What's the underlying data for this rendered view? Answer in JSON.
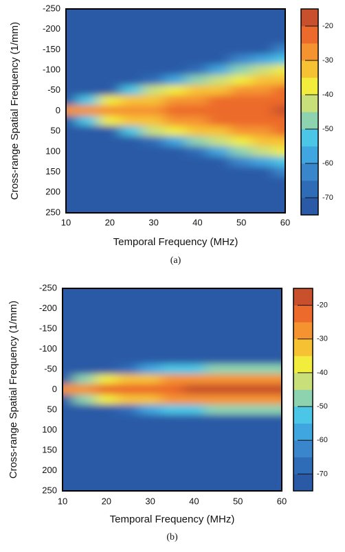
{
  "chart_data": [
    {
      "type": "heatmap",
      "xlabel": "Temporal Frequency (MHz)",
      "ylabel": "Cross-range Spatial Frequency (1/mm)",
      "caption": "(a)",
      "x": [
        10,
        15,
        20,
        25,
        30,
        35,
        40,
        45,
        50,
        55,
        60
      ],
      "y": [
        -250,
        -225,
        -200,
        -175,
        -150,
        -125,
        -100,
        -75,
        -50,
        -25,
        0,
        25,
        50,
        75,
        100,
        125,
        150,
        175,
        200,
        225,
        250
      ],
      "values": [
        [
          -72,
          -72,
          -72,
          -72,
          -72,
          -72,
          -72,
          -72,
          -72,
          -72,
          -72
        ],
        [
          -72,
          -72,
          -72,
          -72,
          -72,
          -72,
          -72,
          -72,
          -72,
          -72,
          -72
        ],
        [
          -72,
          -72,
          -72,
          -72,
          -72,
          -72,
          -72,
          -72,
          -72,
          -72,
          -72
        ],
        [
          -72,
          -72,
          -72,
          -72,
          -72,
          -72,
          -72,
          -72,
          -72,
          -72,
          -72
        ],
        [
          -72,
          -72,
          -72,
          -72,
          -72,
          -72,
          -72,
          -72,
          -72,
          -72,
          -64
        ],
        [
          -72,
          -72,
          -72,
          -72,
          -72,
          -72,
          -72,
          -72,
          -65,
          -57,
          -51
        ],
        [
          -72,
          -72,
          -72,
          -72,
          -72,
          -72,
          -67,
          -57,
          -50,
          -44,
          -40
        ],
        [
          -72,
          -72,
          -72,
          -72,
          -69,
          -56,
          -48,
          -42,
          -38,
          -34,
          -31
        ],
        [
          -72,
          -72,
          -72,
          -55,
          -45,
          -39,
          -35,
          -31,
          -29,
          -27,
          -25
        ],
        [
          -72,
          -51,
          -39,
          -34,
          -31,
          -28,
          -27,
          -25,
          -24,
          -22,
          -21
        ],
        [
          -30,
          -29,
          -28,
          -27,
          -26,
          -25,
          -24,
          -23,
          -22,
          -21,
          -20
        ],
        [
          -72,
          -51,
          -39,
          -34,
          -31,
          -28,
          -27,
          -25,
          -24,
          -22,
          -21
        ],
        [
          -72,
          -72,
          -72,
          -55,
          -45,
          -39,
          -35,
          -31,
          -29,
          -27,
          -25
        ],
        [
          -72,
          -72,
          -72,
          -72,
          -69,
          -56,
          -48,
          -42,
          -38,
          -34,
          -31
        ],
        [
          -72,
          -72,
          -72,
          -72,
          -72,
          -72,
          -67,
          -57,
          -50,
          -44,
          -40
        ],
        [
          -72,
          -72,
          -72,
          -72,
          -72,
          -72,
          -72,
          -72,
          -65,
          -57,
          -51
        ],
        [
          -72,
          -72,
          -72,
          -72,
          -72,
          -72,
          -72,
          -72,
          -72,
          -72,
          -64
        ],
        [
          -72,
          -72,
          -72,
          -72,
          -72,
          -72,
          -72,
          -72,
          -72,
          -72,
          -72
        ],
        [
          -72,
          -72,
          -72,
          -72,
          -72,
          -72,
          -72,
          -72,
          -72,
          -72,
          -72
        ],
        [
          -72,
          -72,
          -72,
          -72,
          -72,
          -72,
          -72,
          -72,
          -72,
          -72,
          -72
        ],
        [
          -72,
          -72,
          -72,
          -72,
          -72,
          -72,
          -72,
          -72,
          -72,
          -72,
          -72
        ]
      ],
      "xlim": [
        10,
        60
      ],
      "xticks": [
        10,
        20,
        30,
        40,
        50,
        60
      ],
      "ylim": [
        -250,
        250
      ],
      "yticks": [
        -250,
        -200,
        -150,
        -100,
        -50,
        0,
        50,
        100,
        150,
        200,
        250
      ],
      "y_inverted": true,
      "zlim": [
        -75,
        -15
      ],
      "zticks": [
        -20,
        -30,
        -40,
        -50,
        -60,
        -70
      ],
      "colors": [
        "#2a5aa6",
        "#2e6cb8",
        "#3a86cc",
        "#3fa6e0",
        "#4cc6e6",
        "#8ed3b0",
        "#c9e07a",
        "#f2ec3c",
        "#f7c134",
        "#f59330",
        "#ec6a2c",
        "#c8502c"
      ]
    },
    {
      "type": "heatmap",
      "xlabel": "Temporal Frequency (MHz)",
      "ylabel": "Cross-range Spatial Frequency (1/mm)",
      "caption": "(b)",
      "x": [
        10,
        15,
        20,
        25,
        30,
        35,
        40,
        45,
        50,
        55,
        60
      ],
      "y": [
        -250,
        -225,
        -200,
        -175,
        -150,
        -125,
        -100,
        -75,
        -50,
        -25,
        0,
        25,
        50,
        75,
        100,
        125,
        150,
        175,
        200,
        225,
        250
      ],
      "values": [
        [
          -72,
          -72,
          -72,
          -72,
          -72,
          -72,
          -72,
          -72,
          -72,
          -72,
          -72
        ],
        [
          -72,
          -72,
          -72,
          -72,
          -72,
          -72,
          -72,
          -72,
          -72,
          -72,
          -72
        ],
        [
          -72,
          -72,
          -72,
          -72,
          -72,
          -72,
          -72,
          -72,
          -72,
          -72,
          -72
        ],
        [
          -72,
          -72,
          -72,
          -72,
          -72,
          -72,
          -72,
          -72,
          -72,
          -72,
          -72
        ],
        [
          -72,
          -72,
          -72,
          -72,
          -72,
          -72,
          -72,
          -72,
          -72,
          -72,
          -72
        ],
        [
          -72,
          -72,
          -72,
          -72,
          -72,
          -72,
          -72,
          -72,
          -72,
          -72,
          -72
        ],
        [
          -72,
          -72,
          -72,
          -72,
          -72,
          -72,
          -72,
          -72,
          -72,
          -72,
          -72
        ],
        [
          -72,
          -72,
          -72,
          -72,
          -72,
          -72,
          -72,
          -72,
          -72,
          -72,
          -72
        ],
        [
          -72,
          -72,
          -72,
          -66,
          -59,
          -54,
          -52,
          -50,
          -48,
          -47,
          -47
        ],
        [
          -72,
          -50,
          -39,
          -34,
          -31,
          -29,
          -28,
          -27,
          -27,
          -27,
          -27
        ],
        [
          -28,
          -26,
          -24,
          -23,
          -22,
          -21,
          -20,
          -20,
          -20,
          -20,
          -20
        ],
        [
          -72,
          -50,
          -39,
          -34,
          -31,
          -29,
          -28,
          -27,
          -27,
          -27,
          -27
        ],
        [
          -72,
          -72,
          -72,
          -66,
          -59,
          -54,
          -52,
          -50,
          -48,
          -47,
          -47
        ],
        [
          -72,
          -72,
          -72,
          -72,
          -72,
          -72,
          -72,
          -72,
          -72,
          -72,
          -72
        ],
        [
          -72,
          -72,
          -72,
          -72,
          -72,
          -72,
          -72,
          -72,
          -72,
          -72,
          -72
        ],
        [
          -72,
          -72,
          -72,
          -72,
          -72,
          -72,
          -72,
          -72,
          -72,
          -72,
          -72
        ],
        [
          -72,
          -72,
          -72,
          -72,
          -72,
          -72,
          -72,
          -72,
          -72,
          -72,
          -72
        ],
        [
          -72,
          -72,
          -72,
          -72,
          -72,
          -72,
          -72,
          -72,
          -72,
          -72,
          -72
        ],
        [
          -72,
          -72,
          -72,
          -72,
          -72,
          -72,
          -72,
          -72,
          -72,
          -72,
          -72
        ],
        [
          -72,
          -72,
          -72,
          -72,
          -72,
          -72,
          -72,
          -72,
          -72,
          -72,
          -72
        ],
        [
          -72,
          -72,
          -72,
          -72,
          -72,
          -72,
          -72,
          -72,
          -72,
          -72,
          -72
        ]
      ],
      "xlim": [
        10,
        60
      ],
      "xticks": [
        10,
        20,
        30,
        40,
        50,
        60
      ],
      "ylim": [
        -250,
        250
      ],
      "yticks": [
        -250,
        -200,
        -150,
        -100,
        -50,
        0,
        50,
        100,
        150,
        200,
        250
      ],
      "y_inverted": true,
      "zlim": [
        -75,
        -15
      ],
      "zticks": [
        -20,
        -30,
        -40,
        -50,
        -60,
        -70
      ],
      "colors": [
        "#2a5aa6",
        "#2e6cb8",
        "#3a86cc",
        "#3fa6e0",
        "#4cc6e6",
        "#8ed3b0",
        "#c9e07a",
        "#f2ec3c",
        "#f7c134",
        "#f59330",
        "#ec6a2c",
        "#c8502c"
      ]
    }
  ]
}
